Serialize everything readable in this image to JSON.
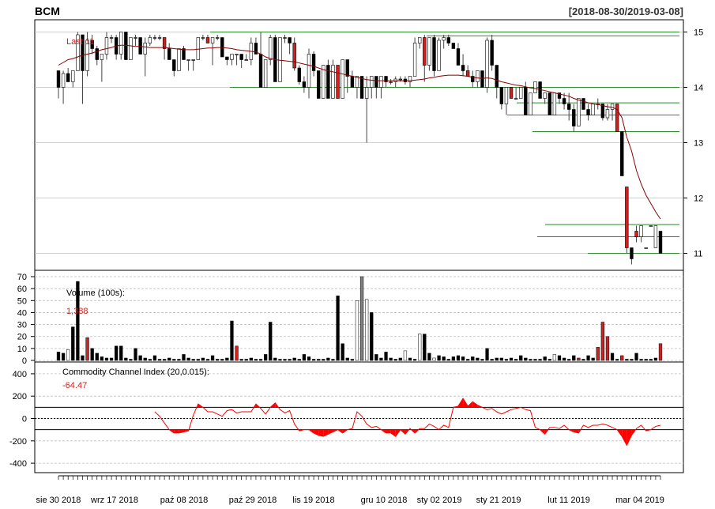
{
  "header": {
    "symbol": "BCM",
    "date_range": "[2018-08-30/2019-03-08]"
  },
  "colors": {
    "up": "#ffffff",
    "down": "#000000",
    "down_red": "#cc2222",
    "neutral": "#808080",
    "sma_line": "#8b0000",
    "support_lines": "#2e8b2e",
    "cci_fill": "#ff0000",
    "grid": "#bfbfbf"
  },
  "chart_data": [
    {
      "type": "candlestick",
      "panel": "price",
      "last_label": "Last 11",
      "y_ticks": [
        "15",
        "14",
        "13",
        "12",
        "11"
      ],
      "ylim": [
        10.75,
        15.15
      ],
      "horizontal_levels": [
        15.0,
        14.93,
        14.0,
        13.72,
        13.5,
        13.2,
        11.52,
        11.3,
        11.0
      ],
      "candles_ohlc": [
        [
          14.3,
          14.3,
          13.8,
          14.0
        ],
        [
          14.0,
          14.3,
          13.7,
          14.25
        ],
        [
          14.25,
          14.35,
          14.1,
          14.1
        ],
        [
          14.1,
          14.3,
          14.0,
          14.3
        ],
        [
          14.3,
          15.0,
          14.3,
          14.95
        ],
        [
          14.95,
          14.95,
          13.7,
          14.3
        ],
        [
          14.3,
          15.0,
          14.2,
          14.85
        ],
        [
          14.85,
          14.95,
          14.6,
          14.7
        ],
        [
          14.7,
          14.75,
          14.4,
          14.5
        ],
        [
          14.5,
          14.6,
          14.1,
          14.6
        ],
        [
          14.6,
          15.0,
          14.5,
          14.9
        ],
        [
          14.9,
          14.95,
          14.8,
          14.9
        ],
        [
          14.9,
          14.95,
          14.5,
          14.6
        ],
        [
          14.6,
          15.0,
          14.5,
          15.0
        ],
        [
          15.0,
          15.0,
          14.5,
          14.5
        ],
        [
          14.5,
          14.9,
          14.5,
          14.9
        ],
        [
          14.9,
          14.95,
          14.75,
          14.9
        ],
        [
          14.9,
          14.9,
          14.6,
          14.6
        ],
        [
          14.6,
          14.9,
          14.2,
          14.8
        ],
        [
          14.8,
          14.95,
          14.75,
          14.9
        ],
        [
          14.9,
          14.95,
          14.85,
          14.9
        ],
        [
          14.9,
          14.95,
          14.85,
          14.9
        ],
        [
          14.9,
          14.9,
          14.5,
          14.7
        ],
        [
          14.7,
          14.8,
          14.5,
          14.5
        ],
        [
          14.5,
          14.5,
          14.2,
          14.3
        ],
        [
          14.3,
          14.7,
          14.3,
          14.7
        ],
        [
          14.7,
          14.75,
          14.5,
          14.5
        ],
        [
          14.5,
          14.5,
          14.3,
          14.5
        ],
        [
          14.5,
          14.5,
          14.3,
          14.5
        ],
        [
          14.5,
          14.9,
          14.5,
          14.9
        ],
        [
          14.9,
          14.95,
          14.85,
          14.9
        ],
        [
          14.9,
          14.95,
          14.8,
          14.8
        ],
        [
          14.8,
          14.9,
          14.4,
          14.9
        ],
        [
          14.9,
          14.95,
          14.85,
          14.9
        ],
        [
          14.9,
          14.9,
          14.55,
          14.55
        ],
        [
          14.55,
          14.55,
          14.4,
          14.5
        ],
        [
          14.5,
          14.6,
          14.4,
          14.6
        ],
        [
          14.6,
          14.6,
          14.4,
          14.6
        ],
        [
          14.6,
          14.6,
          14.35,
          14.5
        ],
        [
          14.5,
          14.6,
          14.5,
          14.5
        ],
        [
          14.5,
          14.9,
          14.4,
          14.8
        ],
        [
          14.8,
          14.9,
          14.6,
          14.6
        ],
        [
          14.6,
          15.0,
          14.0,
          14.0
        ],
        [
          14.0,
          14.5,
          14.0,
          14.5
        ],
        [
          14.5,
          14.95,
          14.4,
          14.9
        ],
        [
          14.9,
          14.95,
          14.1,
          14.1
        ],
        [
          14.1,
          14.9,
          14.1,
          14.9
        ],
        [
          14.9,
          14.95,
          14.8,
          14.9
        ],
        [
          14.9,
          14.9,
          14.6,
          14.8
        ],
        [
          14.8,
          14.9,
          14.3,
          14.35
        ],
        [
          14.35,
          14.4,
          14.05,
          14.1
        ],
        [
          14.1,
          14.2,
          13.9,
          14.0
        ],
        [
          14.0,
          14.7,
          13.8,
          14.6
        ],
        [
          14.6,
          14.65,
          14.2,
          14.3
        ],
        [
          14.3,
          14.3,
          13.8,
          13.8
        ],
        [
          13.8,
          14.4,
          13.8,
          14.4
        ],
        [
          14.4,
          14.5,
          13.8,
          13.8
        ],
        [
          13.8,
          14.5,
          13.8,
          14.4
        ],
        [
          14.4,
          14.4,
          13.8,
          13.8
        ],
        [
          13.8,
          14.5,
          13.8,
          14.5
        ],
        [
          14.5,
          14.5,
          13.9,
          14.2
        ],
        [
          14.2,
          14.3,
          14.0,
          14.0
        ],
        [
          14.0,
          14.2,
          13.8,
          14.2
        ],
        [
          14.2,
          14.2,
          13.8,
          13.8
        ],
        [
          13.8,
          14.2,
          13.0,
          14.0
        ],
        [
          14.0,
          14.2,
          13.8,
          14.2
        ],
        [
          14.2,
          14.2,
          13.8,
          14.0
        ],
        [
          14.0,
          14.2,
          13.8,
          14.2
        ],
        [
          14.2,
          14.2,
          14.0,
          14.1
        ],
        [
          14.1,
          14.15,
          14.05,
          14.1
        ],
        [
          14.1,
          14.2,
          14.0,
          14.15
        ],
        [
          14.15,
          14.2,
          14.1,
          14.15
        ],
        [
          14.15,
          14.2,
          14.05,
          14.1
        ],
        [
          14.1,
          14.2,
          14.0,
          14.2
        ],
        [
          14.2,
          14.9,
          14.2,
          14.8
        ],
        [
          14.8,
          14.9,
          14.7,
          14.9
        ],
        [
          14.9,
          14.95,
          14.1,
          14.4
        ],
        [
          14.4,
          14.9,
          14.3,
          14.9
        ],
        [
          14.9,
          14.95,
          14.2,
          14.3
        ],
        [
          14.3,
          14.9,
          14.3,
          14.85
        ],
        [
          14.85,
          14.95,
          14.7,
          14.9
        ],
        [
          14.9,
          14.95,
          14.75,
          14.8
        ],
        [
          14.8,
          14.8,
          14.7,
          14.7
        ],
        [
          14.7,
          14.8,
          14.4,
          14.4
        ],
        [
          14.4,
          14.6,
          14.2,
          14.3
        ],
        [
          14.3,
          14.4,
          14.2,
          14.2
        ],
        [
          14.2,
          14.3,
          14.0,
          14.1
        ],
        [
          14.1,
          14.3,
          14.0,
          14.3
        ],
        [
          14.3,
          14.3,
          14.0,
          14.0
        ],
        [
          14.0,
          14.9,
          13.9,
          14.85
        ],
        [
          14.85,
          14.95,
          14.3,
          14.4
        ],
        [
          14.4,
          14.4,
          13.8,
          14.0
        ],
        [
          14.0,
          14.0,
          13.6,
          13.7
        ],
        [
          13.7,
          14.0,
          13.5,
          14.0
        ],
        [
          14.0,
          14.0,
          13.8,
          13.8
        ],
        [
          13.8,
          14.0,
          13.8,
          13.8
        ],
        [
          13.8,
          14.0,
          13.8,
          14.0
        ],
        [
          14.0,
          14.1,
          13.5,
          13.5
        ],
        [
          13.5,
          13.9,
          13.5,
          13.9
        ],
        [
          13.9,
          14.1,
          13.9,
          14.1
        ],
        [
          14.1,
          14.1,
          13.8,
          13.8
        ],
        [
          13.8,
          13.9,
          13.7,
          13.9
        ],
        [
          13.9,
          13.9,
          13.5,
          13.5
        ],
        [
          13.5,
          13.9,
          13.5,
          13.9
        ],
        [
          13.9,
          13.9,
          13.7,
          13.8
        ],
        [
          13.8,
          13.9,
          13.6,
          13.7
        ],
        [
          13.7,
          13.9,
          13.4,
          13.6
        ],
        [
          13.6,
          13.7,
          13.2,
          13.3
        ],
        [
          13.3,
          13.8,
          13.3,
          13.8
        ],
        [
          13.8,
          13.8,
          13.6,
          13.6
        ],
        [
          13.6,
          13.7,
          13.4,
          13.5
        ],
        [
          13.5,
          13.7,
          13.5,
          13.7
        ],
        [
          13.7,
          13.8,
          13.6,
          13.7
        ],
        [
          13.7,
          13.7,
          13.4,
          13.45
        ],
        [
          13.45,
          13.7,
          13.4,
          13.6
        ],
        [
          13.6,
          13.7,
          13.4,
          13.7
        ],
        [
          13.7,
          13.7,
          13.2,
          13.2
        ],
        [
          13.2,
          13.2,
          12.4,
          12.4
        ],
        [
          12.2,
          12.2,
          11.0,
          11.1
        ],
        [
          11.1,
          11.1,
          10.8,
          10.9
        ],
        [
          11.4,
          11.5,
          11.2,
          11.3
        ],
        [
          11.3,
          11.5,
          11.2,
          11.5
        ],
        [
          11.1,
          11.1,
          11.1,
          11.1
        ],
        [
          11.5,
          11.5,
          11.5,
          11.5
        ],
        [
          11.1,
          11.5,
          11.1,
          11.5
        ],
        [
          11.4,
          11.4,
          11.0,
          11.0
        ]
      ],
      "sma_series": [
        14.4,
        14.45,
        14.5,
        14.52,
        14.55,
        14.58,
        14.6,
        14.62,
        14.65,
        14.68,
        14.7,
        14.72,
        14.75,
        14.76,
        14.76,
        14.75,
        14.74,
        14.74,
        14.73,
        14.72,
        14.72,
        14.72,
        14.72,
        14.71,
        14.7,
        14.69,
        14.68,
        14.68,
        14.68,
        14.69,
        14.7,
        14.71,
        14.71,
        14.72,
        14.72,
        14.71,
        14.7,
        14.68,
        14.67,
        14.66,
        14.65,
        14.64,
        14.6,
        14.55,
        14.52,
        14.5,
        14.49,
        14.48,
        14.47,
        14.46,
        14.44,
        14.42,
        14.4,
        14.38,
        14.35,
        14.32,
        14.3,
        14.28,
        14.26,
        14.24,
        14.22,
        14.2,
        14.18,
        14.16,
        14.14,
        14.13,
        14.12,
        14.12,
        14.12,
        14.12,
        14.12,
        14.12,
        14.12,
        14.12,
        14.13,
        14.14,
        14.15,
        14.17,
        14.18,
        14.2,
        14.21,
        14.22,
        14.22,
        14.22,
        14.21,
        14.2,
        14.18,
        14.17,
        14.16,
        14.17,
        14.16,
        14.13,
        14.1,
        14.08,
        14.06,
        14.04,
        14.03,
        14.01,
        13.99,
        13.98,
        13.96,
        13.94,
        13.92,
        13.9,
        13.88,
        13.86,
        13.84,
        13.8,
        13.77,
        13.75,
        13.72,
        13.7,
        13.69,
        13.67,
        13.65,
        13.64,
        13.6,
        13.45,
        13.1,
        12.85,
        12.5,
        12.25,
        12.05,
        11.9,
        11.75,
        11.62
      ]
    },
    {
      "type": "bar",
      "panel": "volume",
      "title": "Volume (100s):",
      "last_value": "1,388",
      "y_ticks": [
        "70",
        "60",
        "50",
        "40",
        "30",
        "20",
        "10",
        "0"
      ],
      "ylim": [
        0,
        72
      ],
      "values": [
        7,
        6,
        9,
        28,
        66,
        4,
        19,
        10,
        6,
        3,
        2,
        2,
        12,
        12,
        2,
        1,
        10,
        4,
        2,
        1,
        4,
        1,
        1,
        2,
        1,
        1,
        5,
        2,
        1,
        1,
        2,
        1,
        4,
        1,
        1,
        2,
        33,
        12,
        1,
        1,
        2,
        1,
        1,
        5,
        32,
        2,
        1,
        1,
        1,
        2,
        1,
        5,
        3,
        1,
        1,
        1,
        2,
        1,
        54,
        14,
        2,
        1,
        50,
        70,
        51,
        40,
        5,
        2,
        7,
        2,
        1,
        2,
        8,
        2,
        1,
        22,
        22,
        6,
        2,
        4,
        3,
        1,
        3,
        4,
        3,
        1,
        3,
        2,
        1,
        10,
        1,
        2,
        2,
        1,
        2,
        1,
        4,
        2,
        1,
        1,
        1,
        3,
        1,
        5,
        4,
        2,
        1,
        4,
        2,
        1,
        4,
        2,
        11,
        32,
        20,
        6,
        1,
        4,
        1,
        1,
        6,
        1,
        1,
        1,
        2,
        14
      ],
      "bar_style": [
        "d",
        "d",
        "u",
        "d",
        "d",
        "d",
        "r",
        "d",
        "d",
        "d",
        "d",
        "d",
        "d",
        "d",
        "d",
        "d",
        "d",
        "d",
        "d",
        "d",
        "d",
        "d",
        "d",
        "d",
        "d",
        "d",
        "d",
        "d",
        "d",
        "d",
        "d",
        "d",
        "d",
        "d",
        "d",
        "d",
        "d",
        "r",
        "d",
        "d",
        "d",
        "d",
        "d",
        "d",
        "d",
        "d",
        "d",
        "d",
        "d",
        "d",
        "d",
        "d",
        "d",
        "d",
        "d",
        "d",
        "d",
        "d",
        "d",
        "d",
        "d",
        "d",
        "u",
        "n",
        "u",
        "d",
        "d",
        "d",
        "d",
        "d",
        "d",
        "d",
        "u",
        "d",
        "d",
        "u",
        "d",
        "d",
        "u",
        "d",
        "d",
        "d",
        "d",
        "d",
        "d",
        "d",
        "d",
        "d",
        "d",
        "d",
        "d",
        "d",
        "d",
        "d",
        "d",
        "d",
        "d",
        "d",
        "d",
        "d",
        "d",
        "d",
        "d",
        "u",
        "d",
        "d",
        "d",
        "d",
        "r",
        "d",
        "d",
        "d",
        "r",
        "r",
        "r",
        "d",
        "d",
        "r",
        "d",
        "d",
        "d",
        "d",
        "d",
        "d",
        "d",
        "r"
      ]
    },
    {
      "type": "area",
      "panel": "cci",
      "title": "Commodity Channel Index (20,0.015):",
      "last_value": "-64.47",
      "y_ticks": [
        "400",
        "200",
        "0",
        "-200",
        "-400"
      ],
      "ylim": [
        -470,
        470
      ],
      "threshold_lines": [
        100,
        -100
      ],
      "values": [
        null,
        null,
        null,
        null,
        null,
        null,
        null,
        null,
        null,
        null,
        null,
        null,
        null,
        null,
        null,
        null,
        null,
        null,
        null,
        null,
        60,
        20,
        -40,
        -100,
        -130,
        -130,
        -120,
        -110,
        30,
        130,
        100,
        60,
        60,
        40,
        20,
        70,
        80,
        50,
        60,
        60,
        60,
        130,
        90,
        40,
        100,
        140,
        80,
        50,
        70,
        -50,
        -110,
        -100,
        -100,
        -130,
        -150,
        -160,
        -140,
        -120,
        -100,
        -130,
        -100,
        -90,
        60,
        20,
        -50,
        -80,
        -70,
        -100,
        -130,
        -130,
        -160,
        -100,
        -140,
        -90,
        -130,
        -90,
        -90,
        -50,
        -70,
        -100,
        -60,
        -80,
        100,
        110,
        180,
        110,
        150,
        120,
        100,
        80,
        90,
        60,
        40,
        60,
        80,
        90,
        100,
        80,
        70,
        -80,
        -100,
        -140,
        -80,
        -80,
        -90,
        -60,
        -100,
        -120,
        -130,
        -60,
        -80,
        -60,
        -60,
        -50,
        -60,
        -80,
        -100,
        -160,
        -240,
        -150,
        -90,
        -60,
        -110,
        -100,
        -70,
        -60
      ]
    }
  ],
  "x_axis": {
    "tick_labels": [
      "sie 30 2018",
      "wrz 17 2018",
      "paź 08 2018",
      "paź 29 2018",
      "lis 19 2018",
      "gru 10 2018",
      "sty 02 2019",
      "sty 21 2019",
      "lut 11 2019",
      "mar 04 2019"
    ]
  }
}
